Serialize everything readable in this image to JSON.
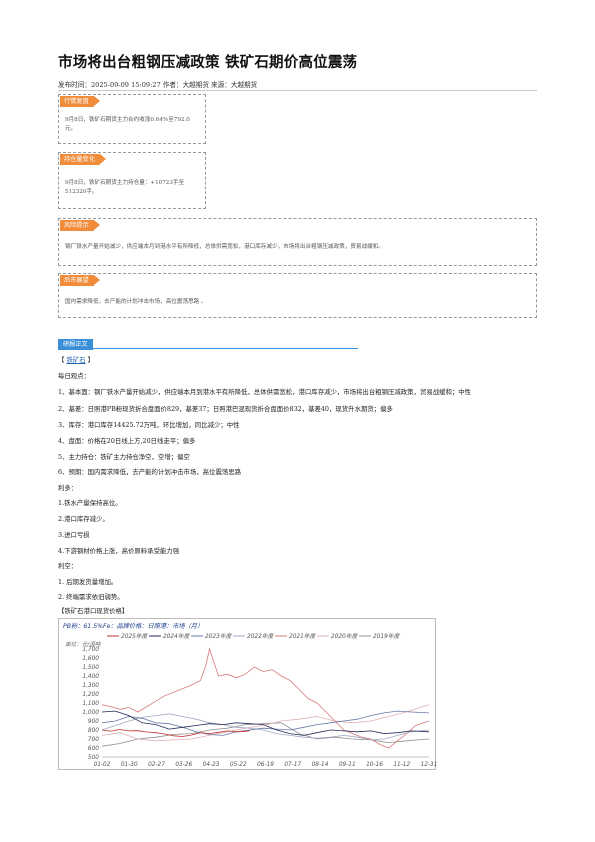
{
  "article": {
    "title": "市场将出台粗钢压减政策 铁矿石期价高位震荡",
    "meta": "发布时间：2025-09-09 15:09:27 作者：大越期货 来源：大越期货"
  },
  "sections": {
    "market_review": {
      "tag": "行情复盘",
      "line1": "9月8日，铁矿石期货主力合约收涨0.64%至792.0",
      "line2": "元。"
    },
    "position_change": {
      "tag": "持仓量变化",
      "line1": "9月8日，铁矿石期货主力持仓量：+10723手至",
      "line2": "512320手。"
    },
    "risk_warning": {
      "tag": "风险提示",
      "text": "钢厂铁水产量开始减少，供应端本月到港水平有所降低，总体供需宽松，港口库存减少，市场将出台粗钢压减政策，贸易战缓和。"
    },
    "outlook": {
      "tag": "后市展望",
      "text": "国内需求降低，去产能的计划冲击市场，高位震荡思路 。"
    }
  },
  "body": {
    "tab": "研报正文",
    "bracket_open": "【 ",
    "link": "铁矿石",
    "bracket_close": " 】",
    "lines": [
      "每日观点：",
      "1、基本面：钢厂铁水产量开始减少，供应端本月到港水平有所降低，总体供需宽松，港口库存减少，市场将出台粗钢压减政策，贸易战缓和；中性",
      "2、基差：日照港PB粉现货折合盘面价829，基差37；日照港巴混现货折合盘面价832，基差40，现货升水期货；偏多",
      "3、库存：港口库存14425.72万吨，环比增加，同比减少；中性",
      "4、盘面：价格在20日线上方,20日线走平；偏多",
      "5、主力持仓：铁矿主力持仓净空，空增；偏空",
      "6、预期：国内需求降低，去产能的计划冲击市场，高位震荡思路",
      "利多：",
      "1.铁水产量保持高位。",
      "2.港口库存减少。",
      "3.进口亏损",
      "4.下游钢材价格上涨，高价原料承受能力强",
      "利空：",
      "1. 后期发货量增加。",
      "2. 终端需求依旧弱势。"
    ],
    "chart_caption": "【铁矿石港口现货价格】"
  },
  "chart_data": {
    "type": "line",
    "title": "PB粉：61.5%Fe：品牌价格：日照港：市场（月）",
    "ylabel": "单位：元/湿吨",
    "ylim": [
      500,
      1700
    ],
    "yticks": [
      "500",
      "600",
      "700",
      "800",
      "900",
      "1,000",
      "1,100",
      "1,200",
      "1,300",
      "1,400",
      "1,500",
      "1,600",
      "1,700"
    ],
    "xticks": [
      "01-02",
      "01-30",
      "02-27",
      "03-26",
      "04-23",
      "05-22",
      "06-19",
      "07-17",
      "08-14",
      "09-11",
      "10-16",
      "11-12",
      "12-31"
    ],
    "series": [
      {
        "name": "2025年度",
        "color": "#c03030",
        "values": [
          [
            0,
            800
          ],
          [
            10,
            788
          ],
          [
            20,
            805
          ],
          [
            30,
            790
          ],
          [
            40,
            792
          ],
          [
            50,
            778
          ],
          [
            60,
            770
          ],
          [
            70,
            755
          ],
          [
            80,
            735
          ],
          [
            90,
            728
          ],
          [
            100,
            745
          ],
          [
            110,
            770
          ],
          [
            120,
            760
          ],
          [
            130,
            775
          ],
          [
            140,
            790
          ],
          [
            150,
            780
          ],
          [
            160,
            785
          ],
          [
            165,
            792
          ]
        ]
      },
      {
        "name": "2024年度",
        "color": "#222a5a",
        "values": [
          [
            0,
            1000
          ],
          [
            15,
            1010
          ],
          [
            30,
            960
          ],
          [
            45,
            880
          ],
          [
            60,
            860
          ],
          [
            75,
            810
          ],
          [
            90,
            830
          ],
          [
            105,
            850
          ],
          [
            120,
            870
          ],
          [
            135,
            860
          ],
          [
            150,
            880
          ],
          [
            165,
            870
          ],
          [
            180,
            860
          ],
          [
            195,
            800
          ],
          [
            210,
            760
          ],
          [
            225,
            740
          ],
          [
            240,
            770
          ],
          [
            255,
            800
          ],
          [
            270,
            790
          ],
          [
            285,
            780
          ],
          [
            300,
            790
          ],
          [
            315,
            760
          ],
          [
            330,
            770
          ],
          [
            345,
            790
          ],
          [
            365,
            780
          ]
        ]
      },
      {
        "name": "2023年度",
        "color": "#6878a8",
        "values": [
          [
            0,
            880
          ],
          [
            15,
            900
          ],
          [
            30,
            950
          ],
          [
            45,
            930
          ],
          [
            60,
            880
          ],
          [
            75,
            870
          ],
          [
            90,
            830
          ],
          [
            105,
            780
          ],
          [
            120,
            750
          ],
          [
            135,
            740
          ],
          [
            150,
            780
          ],
          [
            165,
            800
          ],
          [
            180,
            820
          ],
          [
            195,
            810
          ],
          [
            210,
            800
          ],
          [
            225,
            830
          ],
          [
            240,
            860
          ],
          [
            255,
            880
          ],
          [
            270,
            900
          ],
          [
            285,
            920
          ],
          [
            300,
            960
          ],
          [
            315,
            990
          ],
          [
            330,
            1010
          ],
          [
            345,
            1000
          ],
          [
            365,
            990
          ]
        ]
      },
      {
        "name": "2022年度",
        "color": "#a0a8c0",
        "values": [
          [
            0,
            800
          ],
          [
            15,
            850
          ],
          [
            30,
            900
          ],
          [
            45,
            940
          ],
          [
            60,
            960
          ],
          [
            75,
            980
          ],
          [
            90,
            950
          ],
          [
            105,
            920
          ],
          [
            120,
            880
          ],
          [
            135,
            860
          ],
          [
            150,
            830
          ],
          [
            165,
            820
          ],
          [
            180,
            800
          ],
          [
            195,
            760
          ],
          [
            210,
            740
          ],
          [
            225,
            720
          ],
          [
            240,
            710
          ],
          [
            255,
            720
          ],
          [
            270,
            740
          ],
          [
            285,
            720
          ],
          [
            300,
            690
          ],
          [
            315,
            700
          ],
          [
            330,
            740
          ],
          [
            345,
            780
          ],
          [
            365,
            800
          ]
        ]
      },
      {
        "name": "2021年度",
        "color": "#d87878",
        "values": [
          [
            0,
            1080
          ],
          [
            10,
            1060
          ],
          [
            20,
            1030
          ],
          [
            30,
            1050
          ],
          [
            40,
            1000
          ],
          [
            50,
            1060
          ],
          [
            60,
            1120
          ],
          [
            70,
            1180
          ],
          [
            80,
            1220
          ],
          [
            90,
            1260
          ],
          [
            100,
            1300
          ],
          [
            110,
            1350
          ],
          [
            116,
            1520
          ],
          [
            120,
            1700
          ],
          [
            124,
            1580
          ],
          [
            130,
            1400
          ],
          [
            140,
            1420
          ],
          [
            150,
            1380
          ],
          [
            160,
            1420
          ],
          [
            170,
            1500
          ],
          [
            180,
            1450
          ],
          [
            190,
            1470
          ],
          [
            200,
            1400
          ],
          [
            210,
            1350
          ],
          [
            220,
            1250
          ],
          [
            230,
            1150
          ],
          [
            240,
            1100
          ],
          [
            250,
            1000
          ],
          [
            260,
            900
          ],
          [
            270,
            800
          ],
          [
            280,
            760
          ],
          [
            290,
            720
          ],
          [
            300,
            700
          ],
          [
            310,
            640
          ],
          [
            320,
            600
          ],
          [
            330,
            680
          ],
          [
            340,
            760
          ],
          [
            350,
            850
          ],
          [
            365,
            900
          ]
        ]
      },
      {
        "name": "2020年度",
        "color": "#e0b0b0",
        "values": [
          [
            0,
            740
          ],
          [
            20,
            770
          ],
          [
            40,
            700
          ],
          [
            60,
            680
          ],
          [
            80,
            690
          ],
          [
            100,
            700
          ],
          [
            120,
            740
          ],
          [
            140,
            780
          ],
          [
            160,
            820
          ],
          [
            180,
            850
          ],
          [
            200,
            900
          ],
          [
            220,
            920
          ],
          [
            240,
            950
          ],
          [
            260,
            900
          ],
          [
            280,
            880
          ],
          [
            300,
            900
          ],
          [
            320,
            950
          ],
          [
            340,
            1000
          ],
          [
            355,
            1050
          ],
          [
            365,
            1080
          ]
        ]
      },
      {
        "name": "2019年度",
        "color": "#909090",
        "values": [
          [
            0,
            620
          ],
          [
            20,
            650
          ],
          [
            40,
            700
          ],
          [
            60,
            720
          ],
          [
            80,
            750
          ],
          [
            100,
            760
          ],
          [
            120,
            800
          ],
          [
            140,
            820
          ],
          [
            160,
            860
          ],
          [
            180,
            870
          ],
          [
            200,
            880
          ],
          [
            220,
            760
          ],
          [
            240,
            700
          ],
          [
            260,
            720
          ],
          [
            280,
            700
          ],
          [
            300,
            690
          ],
          [
            320,
            660
          ],
          [
            340,
            680
          ],
          [
            365,
            700
          ]
        ]
      }
    ]
  }
}
